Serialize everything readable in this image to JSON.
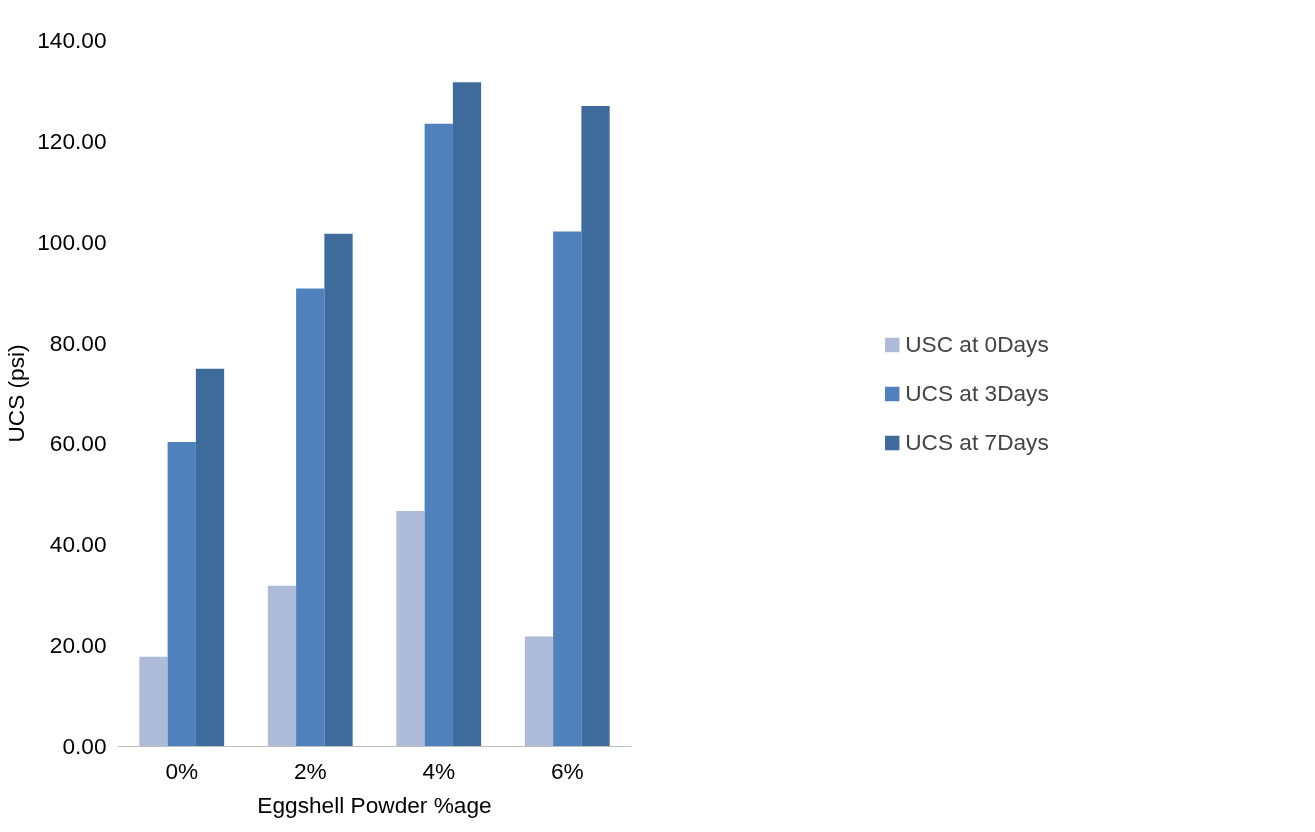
{
  "chart_data": {
    "type": "bar",
    "xlabel": "Eggshell Powder %age",
    "ylabel": "UCS (psi)",
    "categories": [
      "0%",
      "2%",
      "4%",
      "6%"
    ],
    "series": [
      {
        "name": "USC at 0Days",
        "color": "#adbad8",
        "values": [
          17.8,
          31.9,
          46.7,
          21.8
        ]
      },
      {
        "name": "UCS at 3Days",
        "color": "#4f81bd",
        "values": [
          60.4,
          90.8,
          123.5,
          102.1
        ]
      },
      {
        "name": "UCS at 7Days",
        "color": "#3f6a9c",
        "values": [
          74.9,
          101.7,
          131.7,
          127.0
        ]
      }
    ],
    "ylim": [
      0,
      140
    ],
    "yticks": [
      {
        "value": 0,
        "label": "0.00"
      },
      {
        "value": 20,
        "label": "20.00"
      },
      {
        "value": 40,
        "label": "40.00"
      },
      {
        "value": 60,
        "label": "60.00"
      },
      {
        "value": 80,
        "label": "80.00"
      },
      {
        "value": 100,
        "label": "100.00"
      },
      {
        "value": 120,
        "label": "120.00"
      },
      {
        "value": 140,
        "label": "140.00"
      }
    ],
    "grid": false,
    "legend": "right"
  }
}
